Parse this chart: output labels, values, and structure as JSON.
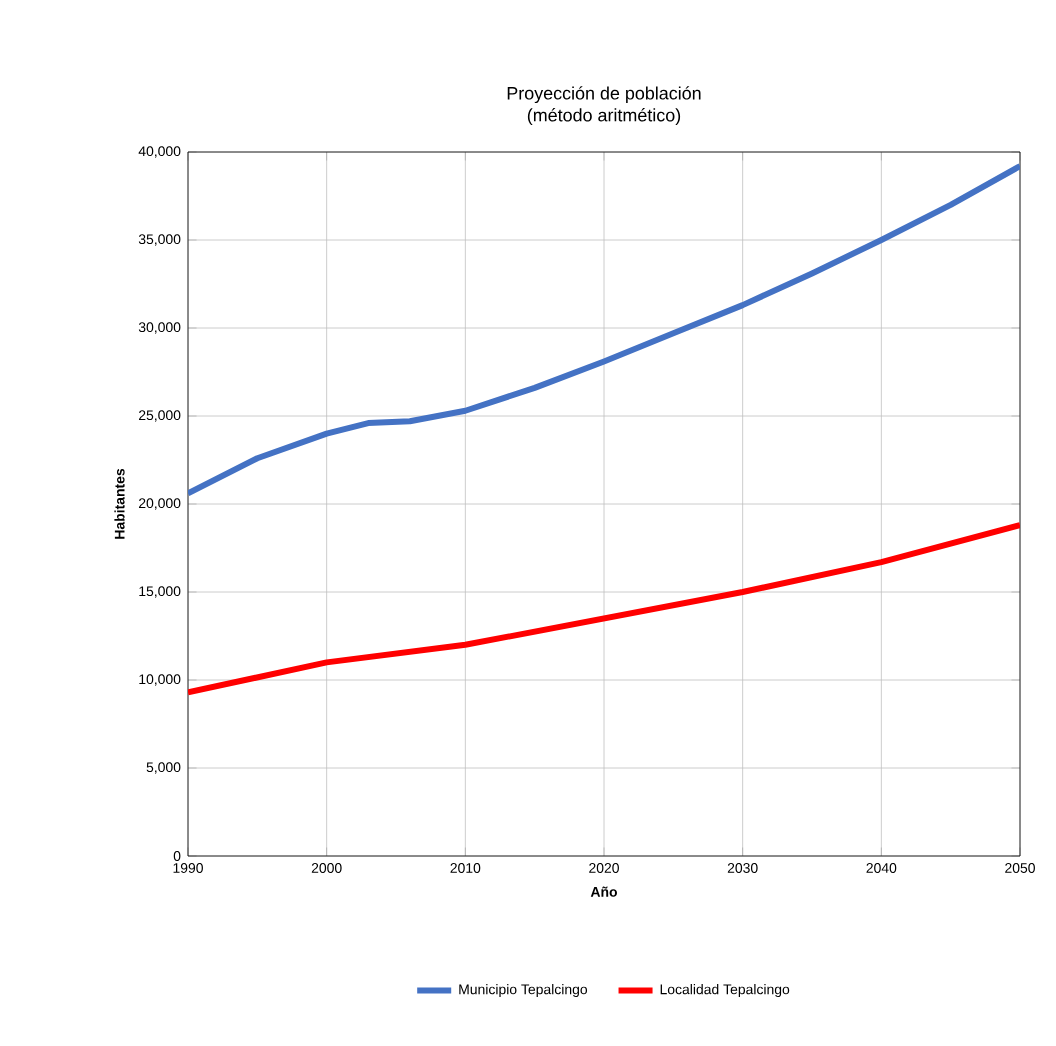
{
  "chart_data": {
    "type": "line",
    "title": "Proyección de población",
    "subtitle": "(método aritmético)",
    "xlabel": "Año",
    "ylabel": "Habitantes",
    "xlim": [
      1990,
      2050
    ],
    "xticks": [
      1990,
      2000,
      2010,
      2020,
      2030,
      2040,
      2050
    ],
    "ylim": [
      0,
      40000
    ],
    "yticks": [
      0,
      {
        "value": 5000,
        "label": "5,000"
      },
      {
        "value": 10000,
        "label": "10,000"
      },
      {
        "value": 15000,
        "label": "15,000"
      },
      {
        "value": 20000,
        "label": "20,000"
      },
      {
        "value": 25000,
        "label": "25,000"
      },
      {
        "value": 30000,
        "label": "30,000"
      },
      {
        "value": 35000,
        "label": "35,000"
      },
      {
        "value": 40000,
        "label": "40,000"
      }
    ],
    "grid": true,
    "legend": "bottom",
    "marker": "none",
    "line_style": "solid",
    "series": [
      {
        "name": "Municipio Tepalcingo",
        "color": "#4472c4",
        "x": [
          1990,
          1995,
          2000,
          2003,
          2006,
          2010,
          2015,
          2020,
          2025,
          2030,
          2035,
          2040,
          2045,
          2050
        ],
        "values": [
          20600,
          22600,
          24000,
          24600,
          24700,
          25300,
          26600,
          28100,
          29700,
          31300,
          33100,
          35000,
          37000,
          39200
        ]
      },
      {
        "name": "Localidad Tepalcingo",
        "color": "#ff0000",
        "x": [
          1990,
          2000,
          2010,
          2020,
          2030,
          2040,
          2050
        ],
        "values": [
          9300,
          11000,
          12000,
          13500,
          15000,
          16700,
          18800
        ]
      }
    ]
  }
}
